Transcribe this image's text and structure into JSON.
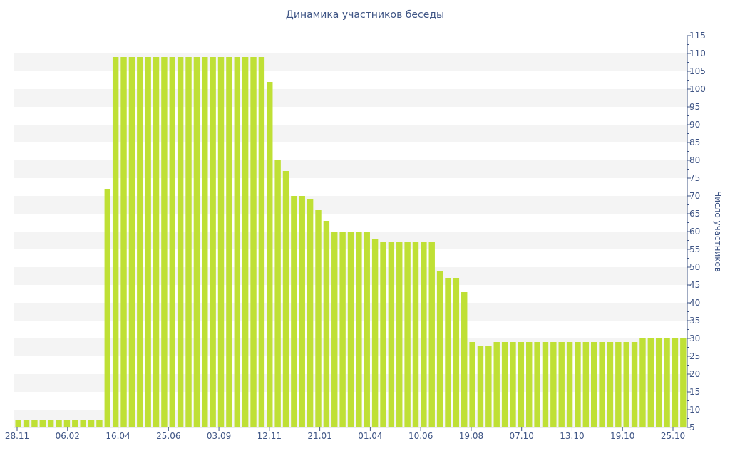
{
  "chart_data": {
    "type": "bar",
    "title": "Динамика участников беседы",
    "xlabel": "",
    "ylabel": "Число участников",
    "ylim": [
      5,
      115
    ],
    "y_ticks": [
      5,
      10,
      15,
      20,
      25,
      30,
      35,
      40,
      45,
      50,
      55,
      60,
      65,
      70,
      75,
      80,
      85,
      90,
      95,
      100,
      105,
      110,
      115
    ],
    "x_tick_labels": [
      "28.11",
      "06.02",
      "16.04",
      "25.06",
      "03.09",
      "12.11",
      "21.01",
      "01.04",
      "10.06",
      "19.08",
      "07.10",
      "13.10",
      "19.10",
      "25.10"
    ],
    "grid": "horizontal alternating bands",
    "y_axis_position": "right",
    "bar_color": "#bfe035",
    "text_color": "#3f5585",
    "values": [
      7,
      7,
      7,
      7,
      7,
      7,
      7,
      7,
      7,
      7,
      7,
      72,
      109,
      109,
      109,
      109,
      109,
      109,
      109,
      109,
      109,
      109,
      109,
      109,
      109,
      109,
      109,
      109,
      109,
      109,
      109,
      102,
      80,
      77,
      70,
      70,
      69,
      66,
      63,
      60,
      60,
      60,
      60,
      60,
      58,
      57,
      57,
      57,
      57,
      57,
      57,
      57,
      49,
      47,
      47,
      43,
      29,
      28,
      28,
      29,
      29,
      29,
      29,
      29,
      29,
      29,
      29,
      29,
      29,
      29,
      29,
      29,
      29,
      29,
      29,
      29,
      29,
      30,
      30,
      30,
      30,
      30,
      30
    ]
  }
}
